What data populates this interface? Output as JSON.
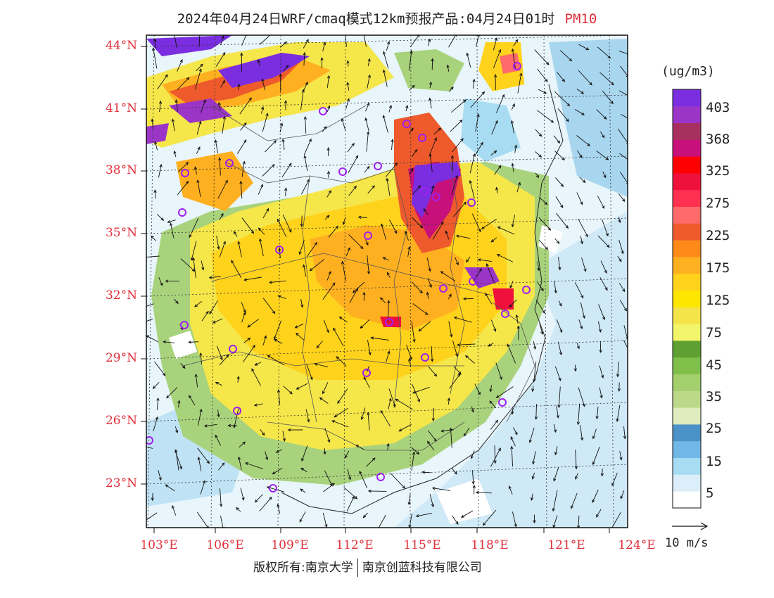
{
  "title": {
    "text": "2024年04月24日WRF/cmaq模式12km预报产品:04月24日01时",
    "variable": "PM10"
  },
  "axes": {
    "lat_labels": [
      "44°N",
      "41°N",
      "38°N",
      "35°N",
      "32°N",
      "29°N",
      "26°N",
      "23°N"
    ],
    "lon_labels": [
      "103°E",
      "106°E",
      "109°E",
      "112°E",
      "115°E",
      "118°E",
      "121°E",
      "124°E"
    ]
  },
  "colorbar": {
    "unit": "(ug/m3)",
    "colors": [
      "#ffffff",
      "#dbeef9",
      "#a8dcf2",
      "#72b8e6",
      "#4b92c8",
      "#e0ebbe",
      "#bcd98a",
      "#a3cf6c",
      "#7fbf4a",
      "#5ea032",
      "#f2f56a",
      "#f5e34a",
      "#ffe600",
      "#ffd21c",
      "#ffb020",
      "#ff8a1a",
      "#ee5a2c",
      "#ff6a6a",
      "#ff3050",
      "#f0103c",
      "#ff0000",
      "#c8107a",
      "#a83060",
      "#9b35c8",
      "#7a2ee0"
    ],
    "labels": [
      "403",
      "368",
      "325",
      "275",
      "225",
      "175",
      "125",
      "75",
      "45",
      "35",
      "25",
      "15",
      "5"
    ]
  },
  "wind_reference": "10 m/s",
  "footer": {
    "left": "版权所有:南京大学",
    "right": "南京创蓝科技有限公司"
  },
  "map": {
    "lon_range": [
      103,
      124
    ],
    "lat_range": [
      21,
      44.5
    ],
    "city_marker_color": "#a020f0"
  }
}
